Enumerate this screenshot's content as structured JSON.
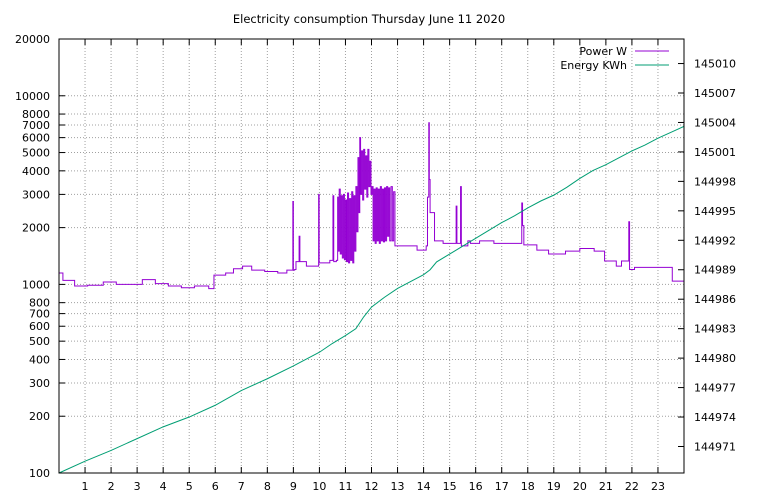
{
  "chart_data": {
    "type": "line",
    "title": "Electricity consumption Thursday June 11 2020",
    "x": {
      "min": 0,
      "max": 24,
      "ticks": [
        1,
        2,
        3,
        4,
        5,
        6,
        7,
        8,
        9,
        10,
        11,
        12,
        13,
        14,
        15,
        16,
        17,
        18,
        19,
        20,
        21,
        22,
        23
      ],
      "grid": true
    },
    "y_left": {
      "scale": "log",
      "min": 100,
      "max": 20000,
      "ticks": [
        100,
        200,
        300,
        400,
        500,
        600,
        700,
        800,
        1000,
        2000,
        3000,
        4000,
        5000,
        6000,
        7000,
        8000,
        10000,
        20000
      ],
      "grid_values": [
        200,
        300,
        400,
        500,
        600,
        700,
        800,
        1000,
        2000,
        3000,
        4000,
        5000,
        6000,
        7000,
        8000,
        10000
      ]
    },
    "y_right": {
      "scale": "linear",
      "min": 144968.3,
      "max": 145012.5,
      "ticks": [
        144971,
        144974,
        144977,
        144980,
        144983,
        144986,
        144989,
        144992,
        144995,
        144998,
        145001,
        145004,
        145007,
        145010
      ]
    },
    "legend": {
      "position": "top-right"
    },
    "series": [
      {
        "name": "Power W",
        "axis": "left",
        "color": "#9400d3",
        "step": true,
        "points": [
          [
            0.0,
            1150
          ],
          [
            0.15,
            1050
          ],
          [
            0.6,
            1050
          ],
          [
            0.6,
            980
          ],
          [
            1.1,
            980
          ],
          [
            1.1,
            990
          ],
          [
            1.7,
            990
          ],
          [
            1.7,
            1030
          ],
          [
            2.2,
            1030
          ],
          [
            2.2,
            1000
          ],
          [
            3.2,
            1000
          ],
          [
            3.2,
            1060
          ],
          [
            3.7,
            1060
          ],
          [
            3.7,
            1010
          ],
          [
            4.2,
            1010
          ],
          [
            4.2,
            980
          ],
          [
            4.7,
            980
          ],
          [
            4.7,
            960
          ],
          [
            5.2,
            960
          ],
          [
            5.2,
            980
          ],
          [
            5.75,
            980
          ],
          [
            5.75,
            950
          ],
          [
            5.95,
            950
          ],
          [
            5.95,
            1120
          ],
          [
            6.4,
            1120
          ],
          [
            6.4,
            1150
          ],
          [
            6.7,
            1150
          ],
          [
            6.7,
            1210
          ],
          [
            7.05,
            1210
          ],
          [
            7.05,
            1250
          ],
          [
            7.4,
            1250
          ],
          [
            7.4,
            1190
          ],
          [
            7.9,
            1190
          ],
          [
            7.9,
            1170
          ],
          [
            8.4,
            1170
          ],
          [
            8.4,
            1150
          ],
          [
            8.75,
            1150
          ],
          [
            8.75,
            1190
          ],
          [
            8.95,
            1190
          ],
          [
            8.98,
            2750
          ],
          [
            9.0,
            1190
          ],
          [
            9.05,
            1200
          ],
          [
            9.1,
            1320
          ],
          [
            9.2,
            1320
          ],
          [
            9.22,
            1800
          ],
          [
            9.25,
            1320
          ],
          [
            9.4,
            1320
          ],
          [
            9.5,
            1250
          ],
          [
            9.95,
            1250
          ],
          [
            9.97,
            3000
          ],
          [
            9.99,
            1300
          ],
          [
            10.3,
            1300
          ],
          [
            10.4,
            1340
          ],
          [
            10.5,
            1340
          ],
          [
            10.52,
            2950
          ],
          [
            10.55,
            1320
          ],
          [
            10.65,
            1340
          ],
          [
            10.7,
            2900
          ],
          [
            10.72,
            1500
          ],
          [
            10.76,
            3200
          ],
          [
            10.8,
            1450
          ],
          [
            10.84,
            2950
          ],
          [
            10.88,
            1380
          ],
          [
            10.92,
            3000
          ],
          [
            10.96,
            1350
          ],
          [
            11.0,
            2800
          ],
          [
            11.04,
            1320
          ],
          [
            11.08,
            3050
          ],
          [
            11.12,
            1300
          ],
          [
            11.16,
            2850
          ],
          [
            11.2,
            1340
          ],
          [
            11.24,
            3100
          ],
          [
            11.28,
            1300
          ],
          [
            11.32,
            2950
          ],
          [
            11.36,
            1500
          ],
          [
            11.4,
            3300
          ],
          [
            11.44,
            1900
          ],
          [
            11.48,
            4700
          ],
          [
            11.52,
            2400
          ],
          [
            11.55,
            6000
          ],
          [
            11.58,
            3000
          ],
          [
            11.62,
            5100
          ],
          [
            11.66,
            2800
          ],
          [
            11.7,
            5200
          ],
          [
            11.74,
            3200
          ],
          [
            11.78,
            4800
          ],
          [
            11.82,
            2900
          ],
          [
            11.86,
            5200
          ],
          [
            11.9,
            3300
          ],
          [
            11.94,
            4500
          ],
          [
            11.98,
            3000
          ],
          [
            12.02,
            3300
          ],
          [
            12.06,
            1700
          ],
          [
            12.1,
            3200
          ],
          [
            12.14,
            1650
          ],
          [
            12.18,
            3250
          ],
          [
            12.22,
            1700
          ],
          [
            12.26,
            3200
          ],
          [
            12.3,
            1650
          ],
          [
            12.34,
            3300
          ],
          [
            12.38,
            1700
          ],
          [
            12.42,
            3200
          ],
          [
            12.46,
            1680
          ],
          [
            12.5,
            3250
          ],
          [
            12.54,
            1700
          ],
          [
            12.58,
            3300
          ],
          [
            12.62,
            1800
          ],
          [
            12.66,
            3250
          ],
          [
            12.7,
            1700
          ],
          [
            12.75,
            3300
          ],
          [
            12.8,
            1700
          ],
          [
            12.85,
            3100
          ],
          [
            12.9,
            1600
          ],
          [
            13.0,
            1600
          ],
          [
            13.7,
            1600
          ],
          [
            13.75,
            1520
          ],
          [
            14.05,
            1520
          ],
          [
            14.1,
            1600
          ],
          [
            14.15,
            2900
          ],
          [
            14.2,
            7200
          ],
          [
            14.22,
            3600
          ],
          [
            14.25,
            2400
          ],
          [
            14.38,
            2400
          ],
          [
            14.42,
            1700
          ],
          [
            14.75,
            1650
          ],
          [
            15.2,
            1650
          ],
          [
            15.25,
            2600
          ],
          [
            15.28,
            1650
          ],
          [
            15.4,
            1650
          ],
          [
            15.42,
            3300
          ],
          [
            15.45,
            1600
          ],
          [
            15.6,
            1600
          ],
          [
            15.7,
            1700
          ],
          [
            15.8,
            1650
          ],
          [
            16.1,
            1650
          ],
          [
            16.15,
            1700
          ],
          [
            16.6,
            1700
          ],
          [
            16.7,
            1650
          ],
          [
            17.75,
            1650
          ],
          [
            17.77,
            2700
          ],
          [
            17.8,
            2050
          ],
          [
            17.85,
            1620
          ],
          [
            18.3,
            1620
          ],
          [
            18.35,
            1520
          ],
          [
            18.75,
            1520
          ],
          [
            18.8,
            1450
          ],
          [
            19.4,
            1450
          ],
          [
            19.45,
            1500
          ],
          [
            19.95,
            1500
          ],
          [
            20.0,
            1550
          ],
          [
            20.5,
            1550
          ],
          [
            20.55,
            1500
          ],
          [
            20.9,
            1500
          ],
          [
            20.95,
            1330
          ],
          [
            21.35,
            1330
          ],
          [
            21.4,
            1250
          ],
          [
            21.55,
            1250
          ],
          [
            21.6,
            1330
          ],
          [
            21.85,
            1330
          ],
          [
            21.88,
            2150
          ],
          [
            21.91,
            1200
          ],
          [
            22.0,
            1200
          ],
          [
            22.1,
            1230
          ],
          [
            23.5,
            1230
          ],
          [
            23.55,
            1040
          ],
          [
            24.0,
            1040
          ]
        ]
      },
      {
        "name": "Energy KWh",
        "axis": "right",
        "color": "#009e73",
        "step": false,
        "points": [
          [
            0.0,
            144968.3
          ],
          [
            1.0,
            144969.5
          ],
          [
            2.0,
            144970.6
          ],
          [
            3.0,
            144971.8
          ],
          [
            4.0,
            144973.0
          ],
          [
            5.0,
            144974.0
          ],
          [
            6.0,
            144975.2
          ],
          [
            7.0,
            144976.7
          ],
          [
            8.0,
            144977.9
          ],
          [
            9.0,
            144979.2
          ],
          [
            10.0,
            144980.6
          ],
          [
            10.5,
            144981.5
          ],
          [
            11.0,
            144982.3
          ],
          [
            11.4,
            144983.0
          ],
          [
            11.7,
            144984.2
          ],
          [
            12.0,
            144985.2
          ],
          [
            12.5,
            144986.2
          ],
          [
            13.0,
            144987.1
          ],
          [
            13.5,
            144987.8
          ],
          [
            14.0,
            144988.5
          ],
          [
            14.25,
            144989.0
          ],
          [
            14.5,
            144989.8
          ],
          [
            15.0,
            144990.6
          ],
          [
            15.5,
            144991.4
          ],
          [
            16.0,
            144992.2
          ],
          [
            16.5,
            144993.0
          ],
          [
            17.0,
            144993.8
          ],
          [
            17.5,
            144994.5
          ],
          [
            18.0,
            144995.3
          ],
          [
            18.5,
            144996.0
          ],
          [
            19.0,
            144996.6
          ],
          [
            19.5,
            144997.4
          ],
          [
            20.0,
            144998.3
          ],
          [
            20.5,
            144999.1
          ],
          [
            21.0,
            144999.7
          ],
          [
            21.5,
            145000.4
          ],
          [
            22.0,
            145001.1
          ],
          [
            22.5,
            145001.7
          ],
          [
            23.0,
            145002.4
          ],
          [
            23.5,
            145003.0
          ],
          [
            24.0,
            145003.6
          ]
        ]
      }
    ]
  }
}
